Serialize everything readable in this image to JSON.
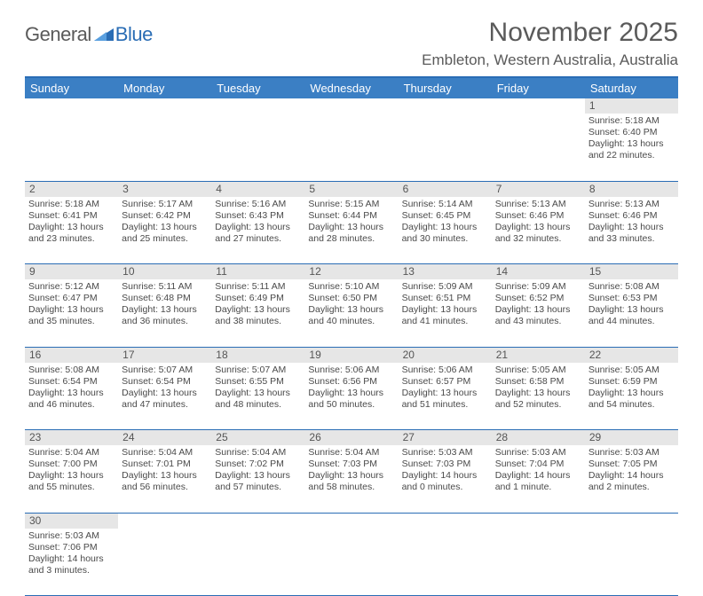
{
  "brand": {
    "part1": "General",
    "part2": "Blue"
  },
  "title": "November 2025",
  "location": "Embleton, Western Australia, Australia",
  "colors": {
    "header_bg": "#3b7fc4",
    "header_border": "#2a6db5",
    "daynum_bg": "#e6e6e6",
    "text": "#4a4a4a",
    "brand_gray": "#5a5a5a",
    "brand_blue": "#2a6db5",
    "background": "#ffffff"
  },
  "typography": {
    "title_fontsize": 30,
    "location_fontsize": 17,
    "header_fontsize": 13,
    "cell_fontsize": 10.5,
    "daynum_fontsize": 12
  },
  "daysOfWeek": [
    "Sunday",
    "Monday",
    "Tuesday",
    "Wednesday",
    "Thursday",
    "Friday",
    "Saturday"
  ],
  "weeks": [
    [
      null,
      null,
      null,
      null,
      null,
      null,
      {
        "n": "1",
        "sr": "Sunrise: 5:18 AM",
        "ss": "Sunset: 6:40 PM",
        "d1": "Daylight: 13 hours",
        "d2": "and 22 minutes."
      }
    ],
    [
      {
        "n": "2",
        "sr": "Sunrise: 5:18 AM",
        "ss": "Sunset: 6:41 PM",
        "d1": "Daylight: 13 hours",
        "d2": "and 23 minutes."
      },
      {
        "n": "3",
        "sr": "Sunrise: 5:17 AM",
        "ss": "Sunset: 6:42 PM",
        "d1": "Daylight: 13 hours",
        "d2": "and 25 minutes."
      },
      {
        "n": "4",
        "sr": "Sunrise: 5:16 AM",
        "ss": "Sunset: 6:43 PM",
        "d1": "Daylight: 13 hours",
        "d2": "and 27 minutes."
      },
      {
        "n": "5",
        "sr": "Sunrise: 5:15 AM",
        "ss": "Sunset: 6:44 PM",
        "d1": "Daylight: 13 hours",
        "d2": "and 28 minutes."
      },
      {
        "n": "6",
        "sr": "Sunrise: 5:14 AM",
        "ss": "Sunset: 6:45 PM",
        "d1": "Daylight: 13 hours",
        "d2": "and 30 minutes."
      },
      {
        "n": "7",
        "sr": "Sunrise: 5:13 AM",
        "ss": "Sunset: 6:46 PM",
        "d1": "Daylight: 13 hours",
        "d2": "and 32 minutes."
      },
      {
        "n": "8",
        "sr": "Sunrise: 5:13 AM",
        "ss": "Sunset: 6:46 PM",
        "d1": "Daylight: 13 hours",
        "d2": "and 33 minutes."
      }
    ],
    [
      {
        "n": "9",
        "sr": "Sunrise: 5:12 AM",
        "ss": "Sunset: 6:47 PM",
        "d1": "Daylight: 13 hours",
        "d2": "and 35 minutes."
      },
      {
        "n": "10",
        "sr": "Sunrise: 5:11 AM",
        "ss": "Sunset: 6:48 PM",
        "d1": "Daylight: 13 hours",
        "d2": "and 36 minutes."
      },
      {
        "n": "11",
        "sr": "Sunrise: 5:11 AM",
        "ss": "Sunset: 6:49 PM",
        "d1": "Daylight: 13 hours",
        "d2": "and 38 minutes."
      },
      {
        "n": "12",
        "sr": "Sunrise: 5:10 AM",
        "ss": "Sunset: 6:50 PM",
        "d1": "Daylight: 13 hours",
        "d2": "and 40 minutes."
      },
      {
        "n": "13",
        "sr": "Sunrise: 5:09 AM",
        "ss": "Sunset: 6:51 PM",
        "d1": "Daylight: 13 hours",
        "d2": "and 41 minutes."
      },
      {
        "n": "14",
        "sr": "Sunrise: 5:09 AM",
        "ss": "Sunset: 6:52 PM",
        "d1": "Daylight: 13 hours",
        "d2": "and 43 minutes."
      },
      {
        "n": "15",
        "sr": "Sunrise: 5:08 AM",
        "ss": "Sunset: 6:53 PM",
        "d1": "Daylight: 13 hours",
        "d2": "and 44 minutes."
      }
    ],
    [
      {
        "n": "16",
        "sr": "Sunrise: 5:08 AM",
        "ss": "Sunset: 6:54 PM",
        "d1": "Daylight: 13 hours",
        "d2": "and 46 minutes."
      },
      {
        "n": "17",
        "sr": "Sunrise: 5:07 AM",
        "ss": "Sunset: 6:54 PM",
        "d1": "Daylight: 13 hours",
        "d2": "and 47 minutes."
      },
      {
        "n": "18",
        "sr": "Sunrise: 5:07 AM",
        "ss": "Sunset: 6:55 PM",
        "d1": "Daylight: 13 hours",
        "d2": "and 48 minutes."
      },
      {
        "n": "19",
        "sr": "Sunrise: 5:06 AM",
        "ss": "Sunset: 6:56 PM",
        "d1": "Daylight: 13 hours",
        "d2": "and 50 minutes."
      },
      {
        "n": "20",
        "sr": "Sunrise: 5:06 AM",
        "ss": "Sunset: 6:57 PM",
        "d1": "Daylight: 13 hours",
        "d2": "and 51 minutes."
      },
      {
        "n": "21",
        "sr": "Sunrise: 5:05 AM",
        "ss": "Sunset: 6:58 PM",
        "d1": "Daylight: 13 hours",
        "d2": "and 52 minutes."
      },
      {
        "n": "22",
        "sr": "Sunrise: 5:05 AM",
        "ss": "Sunset: 6:59 PM",
        "d1": "Daylight: 13 hours",
        "d2": "and 54 minutes."
      }
    ],
    [
      {
        "n": "23",
        "sr": "Sunrise: 5:04 AM",
        "ss": "Sunset: 7:00 PM",
        "d1": "Daylight: 13 hours",
        "d2": "and 55 minutes."
      },
      {
        "n": "24",
        "sr": "Sunrise: 5:04 AM",
        "ss": "Sunset: 7:01 PM",
        "d1": "Daylight: 13 hours",
        "d2": "and 56 minutes."
      },
      {
        "n": "25",
        "sr": "Sunrise: 5:04 AM",
        "ss": "Sunset: 7:02 PM",
        "d1": "Daylight: 13 hours",
        "d2": "and 57 minutes."
      },
      {
        "n": "26",
        "sr": "Sunrise: 5:04 AM",
        "ss": "Sunset: 7:03 PM",
        "d1": "Daylight: 13 hours",
        "d2": "and 58 minutes."
      },
      {
        "n": "27",
        "sr": "Sunrise: 5:03 AM",
        "ss": "Sunset: 7:03 PM",
        "d1": "Daylight: 14 hours",
        "d2": "and 0 minutes."
      },
      {
        "n": "28",
        "sr": "Sunrise: 5:03 AM",
        "ss": "Sunset: 7:04 PM",
        "d1": "Daylight: 14 hours",
        "d2": "and 1 minute."
      },
      {
        "n": "29",
        "sr": "Sunrise: 5:03 AM",
        "ss": "Sunset: 7:05 PM",
        "d1": "Daylight: 14 hours",
        "d2": "and 2 minutes."
      }
    ],
    [
      {
        "n": "30",
        "sr": "Sunrise: 5:03 AM",
        "ss": "Sunset: 7:06 PM",
        "d1": "Daylight: 14 hours",
        "d2": "and 3 minutes."
      },
      null,
      null,
      null,
      null,
      null,
      null
    ]
  ]
}
